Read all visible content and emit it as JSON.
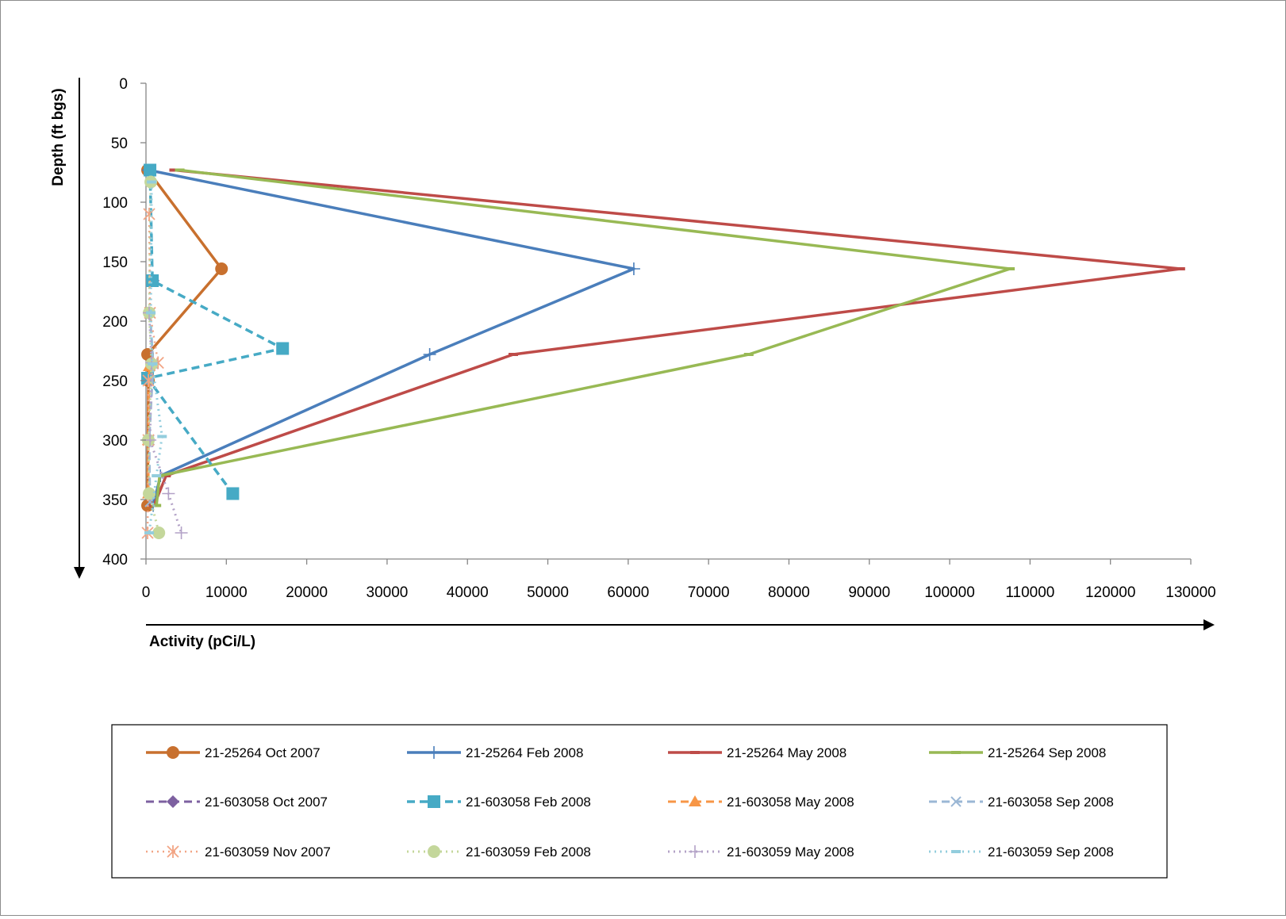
{
  "chart_data": {
    "type": "line",
    "title": "",
    "xlabel": "Activity (pCi/L)",
    "ylabel": "Depth (ft bgs)",
    "xlim": [
      0,
      130000
    ],
    "ylim": [
      0,
      400
    ],
    "y_inverted": true,
    "x_ticks": [
      "0",
      "10000",
      "20000",
      "30000",
      "40000",
      "50000",
      "60000",
      "70000",
      "80000",
      "90000",
      "100000",
      "110000",
      "120000",
      "130000"
    ],
    "y_ticks": [
      "0",
      "50",
      "100",
      "150",
      "200",
      "250",
      "300",
      "350",
      "400"
    ],
    "grid": false,
    "legend_position": "bottom",
    "series": [
      {
        "name": "21-25264 Oct 2007",
        "color": "#c8702e",
        "dash": "solid",
        "width": 3.5,
        "marker": "circle",
        "points": [
          [
            200,
            73
          ],
          [
            9400,
            156
          ],
          [
            200,
            228
          ],
          [
            300,
            250
          ],
          [
            200,
            355
          ]
        ]
      },
      {
        "name": "21-25264 Feb 2008",
        "color": "#4a7ebb",
        "dash": "solid",
        "width": 3.5,
        "marker": "plus",
        "points": [
          [
            300,
            73
          ],
          [
            60700,
            156
          ],
          [
            35300,
            228
          ],
          [
            1800,
            330
          ],
          [
            900,
            355
          ]
        ]
      },
      {
        "name": "21-25264 May 2008",
        "color": "#be4b48",
        "dash": "solid",
        "width": 3.5,
        "marker": "dash",
        "points": [
          [
            3500,
            73
          ],
          [
            128700,
            156
          ],
          [
            45700,
            228
          ],
          [
            2500,
            330
          ],
          [
            1000,
            355
          ]
        ]
      },
      {
        "name": "21-25264 Sep 2008",
        "color": "#98b954",
        "dash": "solid",
        "width": 3.5,
        "marker": "dash",
        "points": [
          [
            4200,
            73
          ],
          [
            107500,
            156
          ],
          [
            75000,
            228
          ],
          [
            1700,
            330
          ],
          [
            1300,
            355
          ]
        ]
      },
      {
        "name": "21-603058 Oct 2007",
        "color": "#7d60a0",
        "dash": "dash",
        "width": 3,
        "marker": "diamond",
        "points": [
          [
            900,
            166
          ]
        ]
      },
      {
        "name": "21-603058 Feb 2008",
        "color": "#46aac5",
        "dash": "dash",
        "width": 3.5,
        "marker": "square",
        "points": [
          [
            500,
            73
          ],
          [
            800,
            166
          ],
          [
            17000,
            223
          ],
          [
            200,
            248
          ],
          [
            10800,
            345
          ]
        ]
      },
      {
        "name": "21-603058 May 2008",
        "color": "#f79646",
        "dash": "dash",
        "width": 3,
        "marker": "triangle",
        "points": [
          [
            400,
            238
          ],
          [
            300,
            300
          ],
          [
            300,
            345
          ]
        ]
      },
      {
        "name": "21-603058 Sep 2008",
        "color": "#9bb7d5",
        "dash": "dash",
        "width": 3,
        "marker": "x",
        "points": [
          [
            500,
            193
          ],
          [
            900,
            236
          ],
          [
            400,
            300
          ],
          [
            500,
            352
          ]
        ]
      },
      {
        "name": "21-603059 Nov 2007",
        "color": "#f2a585",
        "dash": "dot",
        "width": 2.5,
        "marker": "star",
        "points": [
          [
            400,
            110
          ],
          [
            500,
            193
          ],
          [
            1500,
            235
          ],
          [
            300,
            250
          ],
          [
            300,
            300
          ],
          [
            200,
            378
          ]
        ]
      },
      {
        "name": "21-603059 Feb 2008",
        "color": "#c4d79b",
        "dash": "dot",
        "width": 3,
        "marker": "circle",
        "points": [
          [
            600,
            83
          ],
          [
            400,
            193
          ],
          [
            700,
            236
          ],
          [
            300,
            300
          ],
          [
            400,
            345
          ],
          [
            1600,
            378
          ]
        ]
      },
      {
        "name": "21-603059 May 2008",
        "color": "#b3a2c7",
        "dash": "dot",
        "width": 3,
        "marker": "plus",
        "points": [
          [
            400,
            193
          ],
          [
            700,
            235
          ],
          [
            500,
            300
          ],
          [
            2800,
            345
          ],
          [
            4400,
            378
          ]
        ]
      },
      {
        "name": "21-603059 Sep 2008",
        "color": "#93cddd",
        "dash": "dot",
        "width": 3,
        "marker": "dash",
        "points": [
          [
            700,
            83
          ],
          [
            600,
            193
          ],
          [
            800,
            236
          ],
          [
            2000,
            297
          ],
          [
            1300,
            330
          ],
          [
            400,
            378
          ]
        ]
      }
    ]
  }
}
